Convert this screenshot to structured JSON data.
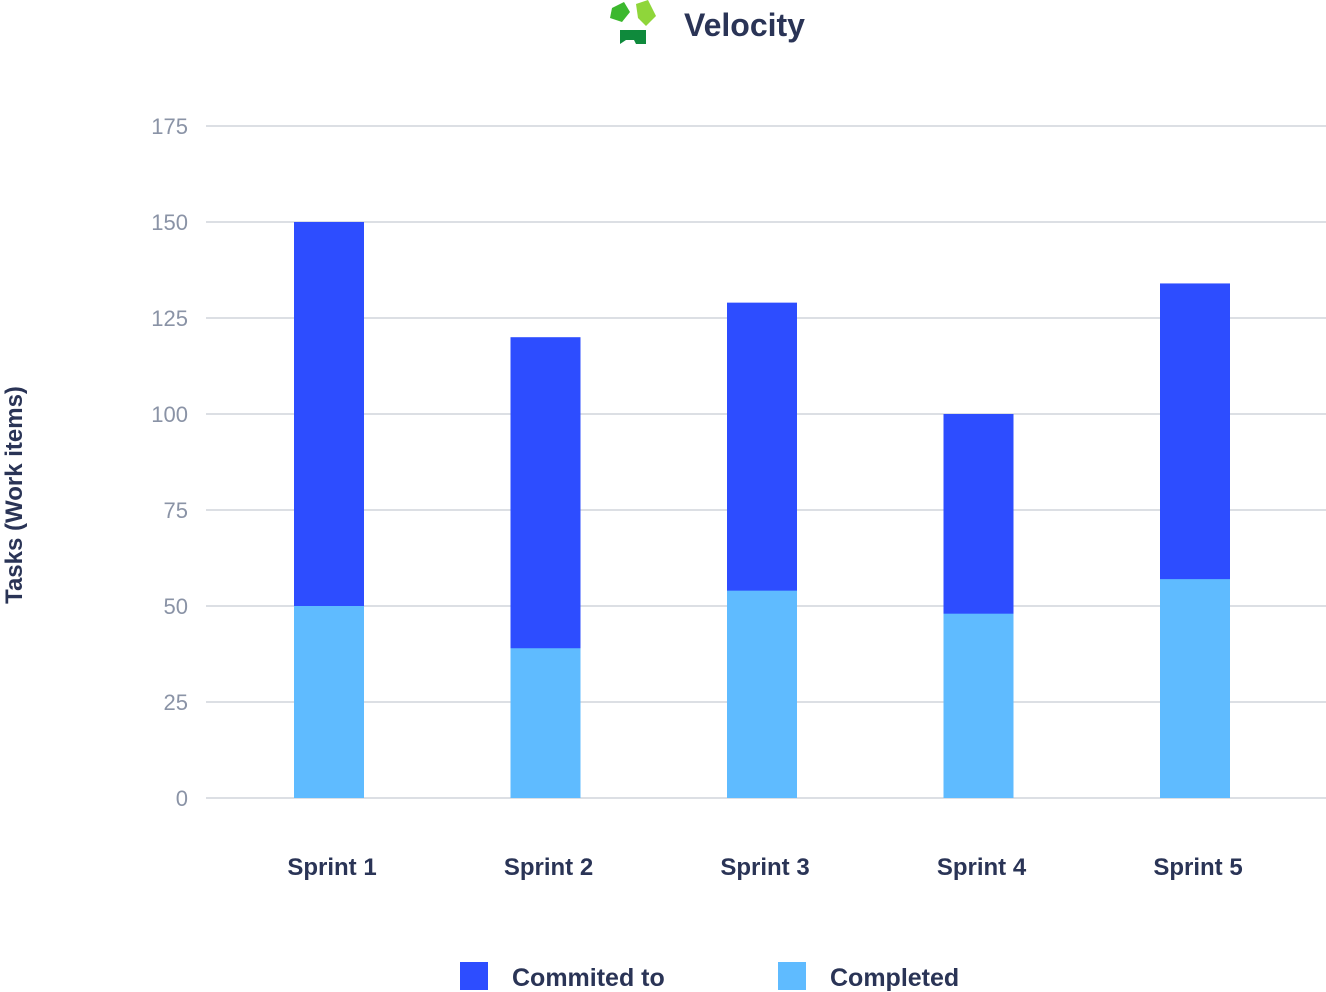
{
  "chart_data": {
    "type": "bar",
    "title": "Velocity",
    "logo": "green-cycle-logo",
    "xlabel": "",
    "ylabel": "Tasks (Work items)",
    "ylim": [
      0,
      175
    ],
    "yticks": [
      0,
      25,
      50,
      75,
      100,
      125,
      150,
      175
    ],
    "grid": true,
    "overlap": true,
    "categories": [
      "Sprint 1",
      "Sprint 2",
      "Sprint 3",
      "Sprint 4",
      "Sprint 5"
    ],
    "series": [
      {
        "name": "Commited to",
        "color": "#2d4dff",
        "values": [
          150,
          120,
          129,
          100,
          134
        ]
      },
      {
        "name": "Completed",
        "color": "#5fbbff",
        "values": [
          50,
          39,
          54,
          48,
          57
        ]
      }
    ],
    "legend": "bottom"
  }
}
